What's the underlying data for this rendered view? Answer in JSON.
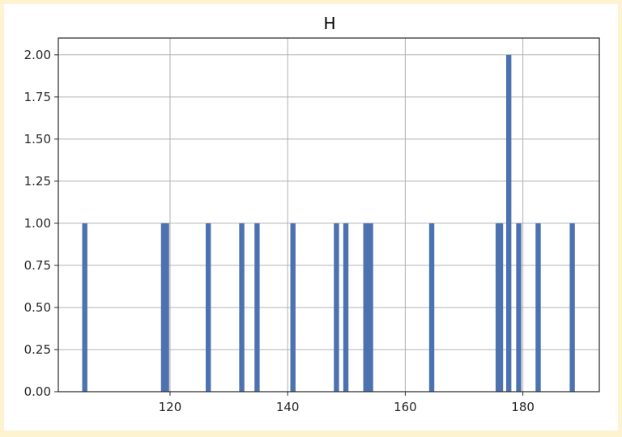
{
  "chart_data": {
    "type": "bar",
    "title": "H",
    "xlabel": "",
    "ylabel": "",
    "xlim": [
      101,
      193
    ],
    "ylim": [
      0,
      2.1
    ],
    "grid": true,
    "bin_width": 0.88,
    "x_ticks": [
      120,
      140,
      160,
      180
    ],
    "x_tick_labels": [
      "120",
      "140",
      "160",
      "180"
    ],
    "y_ticks": [
      0,
      0.25,
      0.5,
      0.75,
      1.0,
      1.25,
      1.5,
      1.75,
      2.0
    ],
    "y_tick_labels": [
      "0.00",
      "0.25",
      "0.50",
      "0.75",
      "1.00",
      "1.25",
      "1.50",
      "1.75",
      "2.00"
    ],
    "bars": [
      {
        "x": 105.5,
        "count": 1
      },
      {
        "x": 118.9,
        "count": 1
      },
      {
        "x": 119.4,
        "count": 1
      },
      {
        "x": 126.5,
        "count": 1
      },
      {
        "x": 132.2,
        "count": 1
      },
      {
        "x": 134.8,
        "count": 1
      },
      {
        "x": 140.9,
        "count": 1
      },
      {
        "x": 148.3,
        "count": 1
      },
      {
        "x": 149.9,
        "count": 1
      },
      {
        "x": 153.3,
        "count": 1
      },
      {
        "x": 154.1,
        "count": 1
      },
      {
        "x": 164.5,
        "count": 1
      },
      {
        "x": 175.8,
        "count": 1
      },
      {
        "x": 176.2,
        "count": 1
      },
      {
        "x": 177.6,
        "count": 2
      },
      {
        "x": 179.3,
        "count": 1
      },
      {
        "x": 182.6,
        "count": 1
      },
      {
        "x": 188.4,
        "count": 1
      }
    ],
    "colors": {
      "bar": "#4c72b0",
      "grid": "#b0b0b0",
      "frame": "#262626",
      "outer_background": "#fdf3d0"
    }
  }
}
